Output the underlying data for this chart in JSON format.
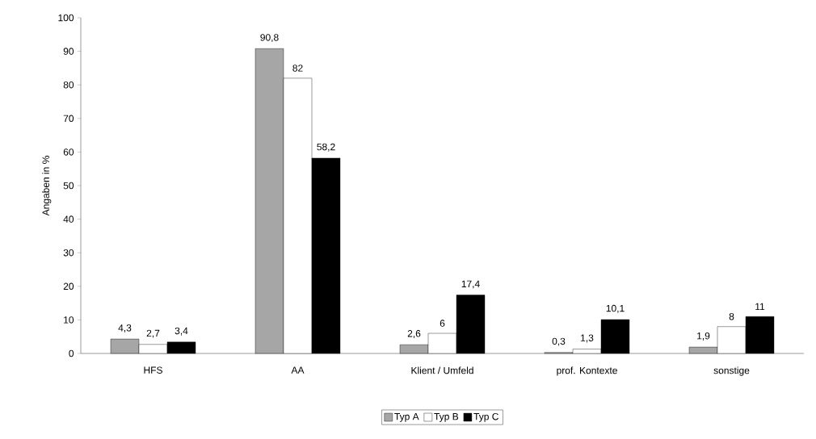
{
  "chart_data": {
    "type": "bar",
    "ylabel": "Angaben in %",
    "categories": [
      "HFS",
      "AA",
      "Klient / Umfeld",
      "prof. Kontexte",
      "sonstige"
    ],
    "series": [
      {
        "name": "Typ A",
        "color": "#a6a6a6",
        "values": [
          4.3,
          90.8,
          2.6,
          0.3,
          1.9
        ],
        "value_labels": [
          "4,3",
          "90,8",
          "2,6",
          "0,3",
          "1,9"
        ]
      },
      {
        "name": "Typ B",
        "color": "#ffffff",
        "values": [
          2.7,
          82,
          6,
          1.3,
          8
        ],
        "value_labels": [
          "2,7",
          "82",
          "6",
          "1,3",
          "8"
        ]
      },
      {
        "name": "Typ C",
        "color": "#000000",
        "values": [
          3.4,
          58.2,
          17.4,
          10.1,
          11
        ],
        "value_labels": [
          "3,4",
          "58,2",
          "17,4",
          "10,1",
          "11"
        ]
      }
    ],
    "ylim": [
      0,
      100
    ],
    "yticks": [
      0,
      10,
      20,
      30,
      40,
      50,
      60,
      70,
      80,
      90,
      100
    ],
    "grid": false,
    "legend": "bottom"
  }
}
